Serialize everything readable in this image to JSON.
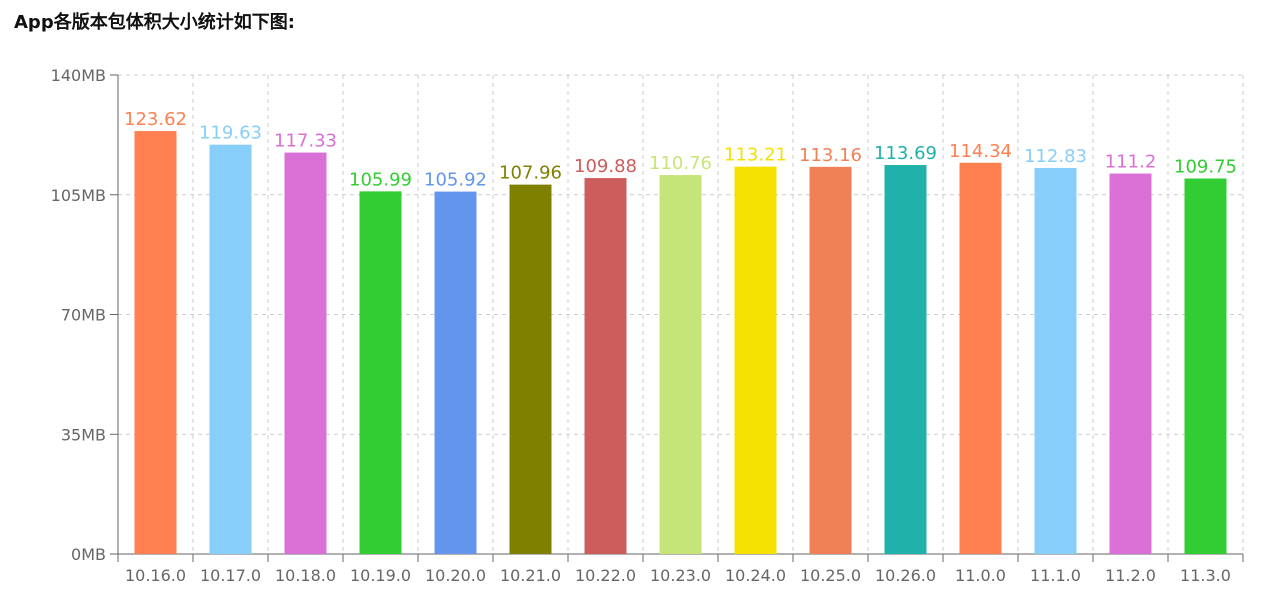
{
  "page": {
    "title": "App各版本包体积大小统计如下图:"
  },
  "chart_data": {
    "type": "bar",
    "categories": [
      "10.16.0",
      "10.17.0",
      "10.18.0",
      "10.19.0",
      "10.20.0",
      "10.21.0",
      "10.22.0",
      "10.23.0",
      "10.24.0",
      "10.25.0",
      "10.26.0",
      "11.0.0",
      "11.1.0",
      "11.2.0",
      "11.3.0"
    ],
    "values": [
      123.62,
      119.63,
      117.33,
      105.99,
      105.92,
      107.96,
      109.88,
      110.76,
      113.21,
      113.16,
      113.69,
      114.34,
      112.83,
      111.2,
      109.75
    ],
    "value_labels": [
      "123.62",
      "119.63",
      "117.33",
      "105.99",
      "105.92",
      "107.96",
      "109.88",
      "110.76",
      "113.21",
      "113.16",
      "113.69",
      "114.34",
      "112.83",
      "111.2",
      "109.75"
    ],
    "colors": [
      "#ff7f50",
      "#87cefa",
      "#da70d6",
      "#32cd32",
      "#6495ed",
      "#808000",
      "#cd5c5c",
      "#c6e579",
      "#f4e001",
      "#f08056",
      "#20b2aa",
      "#ff7f50",
      "#87cefa",
      "#da70d6",
      "#32cd32"
    ],
    "ylim": [
      0,
      140
    ],
    "yticks": [
      0,
      35,
      70,
      105,
      140
    ],
    "ytick_labels": [
      "0MB",
      "35MB",
      "70MB",
      "105MB",
      "140MB"
    ],
    "grid": true,
    "axis_color": "#666666",
    "grid_color": "#cccccc",
    "title": "",
    "xlabel": "",
    "ylabel": ""
  }
}
